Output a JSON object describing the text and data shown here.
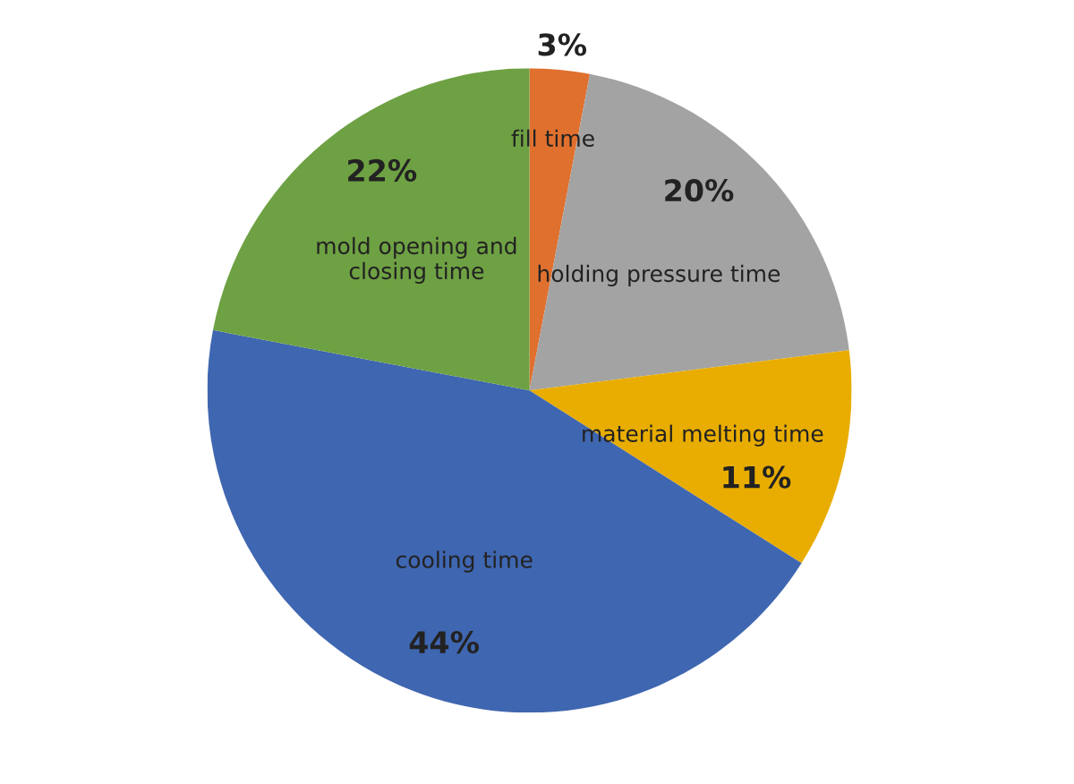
{
  "chart_data": {
    "type": "pie",
    "categories": [
      "fill time",
      "holding pressure time",
      "material melting time",
      "cooling time",
      "mold opening and closing time"
    ],
    "values": [
      3,
      20,
      11,
      44,
      22
    ],
    "colors": [
      "#e0702e",
      "#a3a3a3",
      "#e8ad00",
      "#3f66b0",
      "#6ea143"
    ],
    "value_labels": [
      "3%",
      "20%",
      "11%",
      "44%",
      "22%"
    ],
    "legend": false
  }
}
